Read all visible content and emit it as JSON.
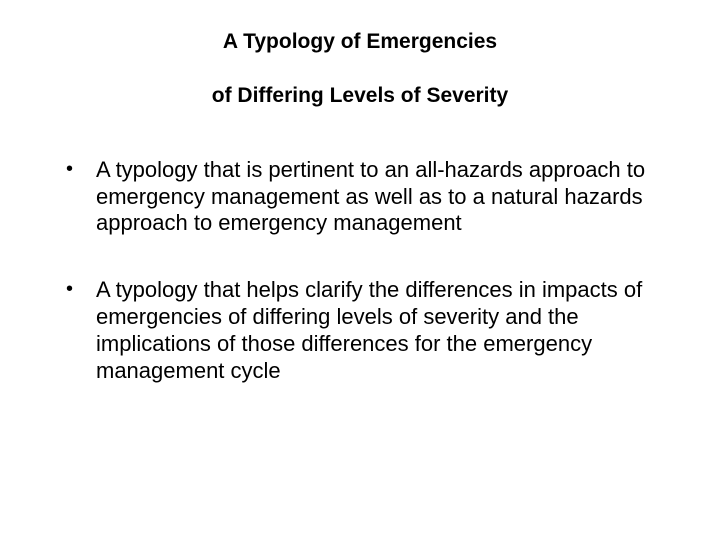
{
  "title": {
    "line1": "A Typology of Emergencies",
    "line2": "of Differing Levels of Severity"
  },
  "bullets": [
    " A typology that is pertinent to an all-hazards approach to emergency management as well as to a natural hazards approach to emergency management",
    " A typology that helps clarify the differences in impacts of emergencies of differing levels of severity and the implications of those differences for the emergency management cycle"
  ],
  "colors": {
    "background": "#ffffff",
    "text": "#000000"
  },
  "typography": {
    "title_fontsize": 21,
    "title_weight": 700,
    "body_fontsize": 22,
    "body_weight": 400,
    "font_family": "Verdana"
  }
}
